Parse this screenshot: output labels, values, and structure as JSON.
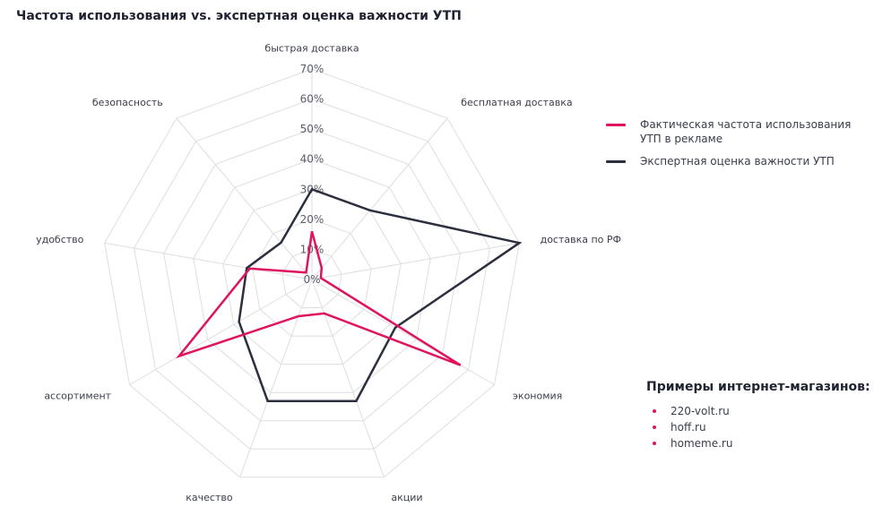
{
  "chart_data": {
    "type": "radar",
    "title": "Частота использования vs. экспертная оценка важности УТП",
    "axes": [
      "быстрая доставка",
      "бесплатная доставка",
      "доставка по РФ",
      "экономия",
      "акции",
      "качество",
      "ассортимент",
      "удобство",
      "безопасность"
    ],
    "r_ticks": [
      "0%",
      "10%",
      "20%",
      "30%",
      "40%",
      "50%",
      "60%",
      "70%"
    ],
    "r_range": [
      0,
      70
    ],
    "unit": "%",
    "series": [
      {
        "name": "Фактическая частота использования УТП в рекламе",
        "color": "#e0135f",
        "values": [
          16,
          5,
          3,
          57,
          12,
          13,
          51,
          21,
          3
        ]
      },
      {
        "name": "Экспертная оценка важности УТП",
        "color": "#2b2f3e",
        "values": [
          30,
          30,
          70,
          32,
          43,
          43,
          28,
          22,
          16
        ]
      }
    ],
    "legend_position": "right",
    "grid": true
  },
  "examples": {
    "title": "Примеры интернет-магазинов:",
    "items": [
      "220-volt.ru",
      "hoff.ru",
      "homeme.ru"
    ]
  }
}
